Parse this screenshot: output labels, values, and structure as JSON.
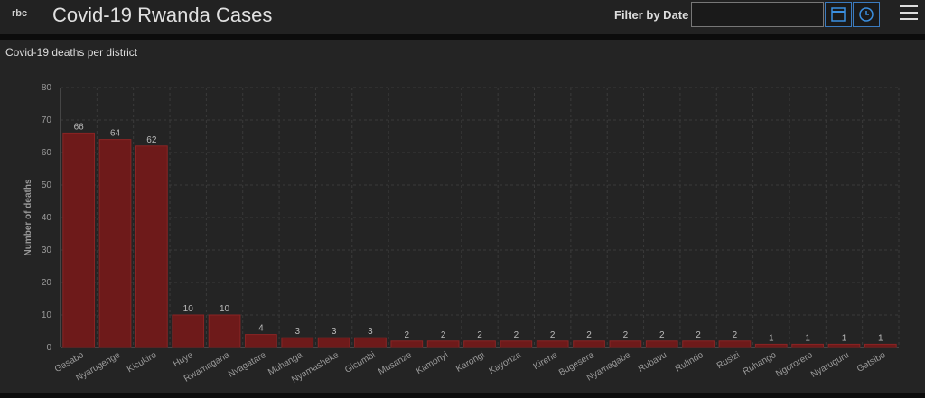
{
  "header": {
    "logo": "rbc",
    "title": "Covid-19 Rwanda Cases",
    "filter_label": "Filter by Date"
  },
  "chart_data": {
    "type": "bar",
    "title": "Covid-19 deaths per district",
    "y_label": "Number of deaths",
    "categories": [
      "Gasabo",
      "Nyarugenge",
      "Kicukiro",
      "Huye",
      "Rwamagana",
      "Nyagatare",
      "Muhanga",
      "Nyamasheke",
      "Gicumbi",
      "Musanze",
      "Kamonyi",
      "Karongi",
      "Kayonza",
      "Kirehe",
      "Bugesera",
      "Nyamagabe",
      "Rubavu",
      "Rulindo",
      "Rusizi",
      "Ruhango",
      "Ngororero",
      "Nyaruguru",
      "Gatsibo"
    ],
    "values": [
      66,
      64,
      62,
      10,
      10,
      4,
      3,
      3,
      3,
      2,
      2,
      2,
      2,
      2,
      2,
      2,
      2,
      2,
      2,
      1,
      1,
      1,
      1
    ],
    "color": "#6e1a1a",
    "ylim": [
      0,
      80
    ],
    "yticks": [
      0,
      10,
      20,
      30,
      40,
      50,
      60,
      70,
      80
    ],
    "grid": true
  }
}
